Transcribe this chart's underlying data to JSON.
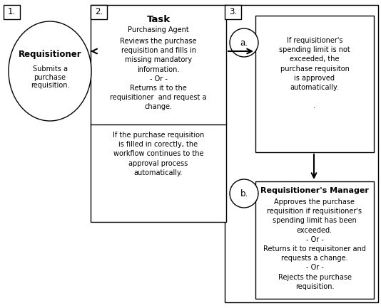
{
  "background_color": "#ffffff",
  "box_edge_color": "#000000",
  "box_fill_color": "#ffffff",
  "arrow_color": "#000000",
  "label1": "1.",
  "label2": "2.",
  "label3": "3.",
  "label_a": "a.",
  "label_b": "b.",
  "role1_title": "Requisitioner",
  "role1_body": "Submits a\npurchase\nrequisition.",
  "task_title": "Task",
  "task_subtitle": "Purchasing Agent",
  "task_body1": "Reviews the purchase\nrequisition and fills in\nmissing mandatory\ninformation.\n- Or -\nReturns it to the\nrequisitioner  and request a\nchange.",
  "task_body2": "If the purchase requisition\nis filled in corectly, the\nworkflow continues to the\napproval process\nautomatically.",
  "box_a_body": "If requisitioner's\nspending limit is not\nexceeded, the\npurchase requisiton\nis approved\nautomatically.\n\n.",
  "role_b_title": "Requisitioner's Manager",
  "role_b_body": "Approves the purchase\nrequisition if requisitioner's\nspending limit has been\nexceeded.\n- Or -\nReturns it to requisitoner and\nrequests a change.\n- Or -\nRejects the purchase\nrequisition.",
  "fontsize_label": 8.5,
  "fontsize_title": 9.5,
  "fontsize_body": 7.0,
  "fontsize_role_title": 8.0
}
